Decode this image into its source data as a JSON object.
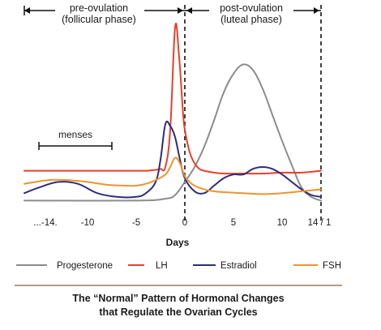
{
  "chart_data": {
    "type": "line",
    "xlabel": "Days",
    "ylabel": "",
    "xlim": [
      -16.5,
      14.5
    ],
    "ylim": [
      0,
      100
    ],
    "x_ticks": [
      {
        "value": -14,
        "label": "...-14."
      },
      {
        "value": -10,
        "label": "-10"
      },
      {
        "value": -5,
        "label": "-5"
      },
      {
        "value": 0,
        "label": "0"
      },
      {
        "value": 5,
        "label": "5"
      },
      {
        "value": 10,
        "label": "10"
      },
      {
        "value": 14,
        "label": "14 / 1"
      }
    ],
    "phases": [
      {
        "line1": "pre-ovulation",
        "line2": "(follicular phase)",
        "from": -16.5,
        "to": 0
      },
      {
        "line1": "post-ovulation",
        "line2": "(luteal phase)",
        "from": 0,
        "to": 14
      }
    ],
    "annotations": [
      {
        "text": "menses",
        "from": -15,
        "to": -7.5
      }
    ],
    "series": [
      {
        "name": "Progesterone",
        "color": "#8c8c8c",
        "x": [
          -16.5,
          -5,
          -2,
          -1,
          0,
          1,
          2,
          3,
          4,
          5,
          6,
          7,
          8,
          9,
          10,
          11,
          12,
          13,
          14
        ],
        "y": [
          2,
          2,
          3,
          5,
          12,
          20,
          31,
          45,
          60,
          70,
          75,
          72,
          62,
          48,
          34,
          21,
          9,
          4,
          2
        ]
      },
      {
        "name": "LH",
        "color": "#e8402a",
        "x": [
          -16.5,
          -5,
          -4,
          -3,
          -2.5,
          -2,
          -1.5,
          -1,
          -0.6,
          -0.2,
          0,
          0.5,
          1,
          1.5,
          2,
          3,
          4,
          6,
          8,
          10,
          12,
          14
        ],
        "y": [
          18,
          18,
          18,
          18.5,
          19,
          20,
          40,
          95,
          80,
          50,
          40,
          28,
          22,
          19,
          18,
          17,
          16.5,
          16.5,
          16.5,
          17,
          17,
          18
        ]
      },
      {
        "name": "Estradiol",
        "color": "#2e2d7a",
        "x": [
          -16.5,
          -15,
          -13,
          -11,
          -9,
          -7,
          -5,
          -4,
          -3,
          -2.5,
          -2,
          -1.5,
          -1,
          -0.5,
          0,
          1,
          2,
          3,
          4,
          5,
          6,
          7,
          8,
          9,
          10,
          11,
          12,
          13,
          14
        ],
        "y": [
          6,
          9,
          12,
          11,
          6,
          4,
          4,
          6,
          12,
          24,
          43,
          42,
          36,
          24,
          14,
          7,
          6,
          10,
          14,
          16,
          16,
          19,
          20,
          19,
          16,
          12,
          8,
          5,
          4
        ]
      },
      {
        "name": "FSH",
        "color": "#f0922e",
        "x": [
          -16.5,
          -14,
          -12,
          -10,
          -8,
          -6,
          -5,
          -4,
          -3,
          -2,
          -1.5,
          -1,
          -0.5,
          0,
          0.5,
          1,
          2,
          3,
          4,
          6,
          8,
          10,
          12,
          14
        ],
        "y": [
          11,
          13,
          13,
          12,
          10.5,
          10,
          10,
          11,
          13,
          16,
          20,
          25,
          22,
          15,
          12,
          10,
          8,
          7,
          6.5,
          6,
          5.5,
          6,
          7,
          8
        ]
      }
    ],
    "caption": [
      "The “Normal” Pattern of Hormonal Changes",
      "that Regulate the Ovarian Cycles"
    ]
  }
}
